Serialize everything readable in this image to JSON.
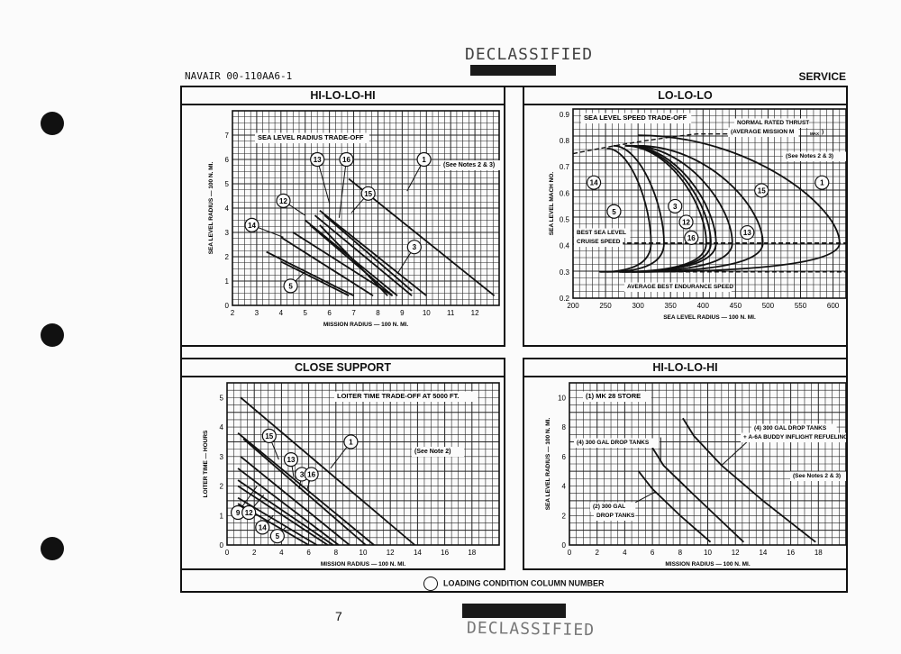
{
  "page": {
    "doc_number": "NAVAIR 00-110AA6-1",
    "section": "SERVICE",
    "stamp_top": "DECLASSIFIED",
    "stamp_bottom": "DECLASSIFIED",
    "legend": "LOADING CONDITION COLUMN NUMBER",
    "stray_mark": "7"
  },
  "chart_data": [
    {
      "panel_title": "HI-LO-LO-HI",
      "type": "line",
      "inner_title": "SEA LEVEL RADIUS TRADE-OFF",
      "note": "(See Notes 2 & 3)",
      "xlabel": "MISSION RADIUS — 100 N. MI.",
      "ylabel": "SEA LEVEL RADIUS — 100 N. MI.",
      "xlim": [
        2,
        13
      ],
      "ylim": [
        0,
        8
      ],
      "xticks": [
        2,
        3,
        4,
        5,
        6,
        7,
        8,
        9,
        10,
        11,
        12
      ],
      "yticks": [
        0,
        1,
        2,
        3,
        4,
        5,
        6,
        7
      ],
      "series": [
        {
          "name": "1",
          "points": [
            [
              6.8,
              5.2
            ],
            [
              12.8,
              0.4
            ]
          ]
        },
        {
          "name": "15",
          "points": [
            [
              5.6,
              3.9
            ],
            [
              10.0,
              0.4
            ]
          ]
        },
        {
          "name": "16",
          "points": [
            [
              5.4,
              3.7
            ],
            [
              9.4,
              0.4
            ]
          ]
        },
        {
          "name": "13",
          "points": [
            [
              5.0,
              3.5
            ],
            [
              8.8,
              0.4
            ]
          ]
        },
        {
          "name": "",
          "points": [
            [
              5.2,
              3.3
            ],
            [
              8.6,
              0.4
            ]
          ]
        },
        {
          "name": "",
          "points": [
            [
              5.6,
              3.3
            ],
            [
              8.4,
              0.4
            ]
          ]
        },
        {
          "name": "12",
          "points": [
            [
              4.5,
              3.0
            ],
            [
              8.6,
              0.4
            ]
          ]
        },
        {
          "name": "14",
          "points": [
            [
              4.0,
              2.8
            ],
            [
              7.8,
              0.4
            ]
          ]
        },
        {
          "name": "5",
          "points": [
            [
              3.4,
              2.2
            ],
            [
              7.0,
              0.4
            ]
          ]
        },
        {
          "name": "",
          "points": [
            [
              4.0,
              1.8
            ],
            [
              6.8,
              0.4
            ]
          ]
        },
        {
          "name": "3",
          "points": [
            [
              5.8,
              3.7
            ],
            [
              9.4,
              0.6
            ]
          ]
        }
      ],
      "callouts": [
        {
          "label": "1",
          "at": [
            9.9,
            6.0
          ],
          "to": [
            9.2,
            4.7
          ]
        },
        {
          "label": "13",
          "at": [
            5.5,
            6.0
          ],
          "to": [
            6.0,
            4.2
          ]
        },
        {
          "label": "16",
          "at": [
            6.7,
            6.0
          ],
          "to": [
            6.4,
            3.6
          ]
        },
        {
          "label": "15",
          "at": [
            7.6,
            4.6
          ],
          "to": [
            6.9,
            3.8
          ]
        },
        {
          "label": "12",
          "at": [
            4.1,
            4.3
          ],
          "to": [
            5.0,
            3.7
          ]
        },
        {
          "label": "14",
          "at": [
            2.8,
            3.3
          ],
          "to": [
            4.1,
            2.8
          ]
        },
        {
          "label": "3",
          "at": [
            9.5,
            2.4
          ],
          "to": [
            8.8,
            1.3
          ]
        },
        {
          "label": "5",
          "at": [
            4.4,
            0.8
          ],
          "to": [
            5.0,
            1.4
          ]
        }
      ]
    },
    {
      "panel_title": "LO-LO-LO",
      "type": "line",
      "inner_title": "SEA LEVEL SPEED TRADE-OFF",
      "note": "(See Notes 2 & 3)",
      "annotations": [
        "NORMAL RATED THRUST",
        "(AVERAGE MISSION M",
        "MAX",
        ")",
        "BEST SEA LEVEL",
        "CRUISE SPEED",
        "AVERAGE BEST ENDURANCE SPEED"
      ],
      "xlabel": "SEA LEVEL RADIUS — 100 N. MI.",
      "ylabel": "SEA LEVEL MACH NO.",
      "xlim": [
        200,
        620
      ],
      "ylim": [
        0.2,
        0.92
      ],
      "xticks": [
        200,
        250,
        300,
        350,
        400,
        450,
        500,
        550,
        600
      ],
      "yticks": [
        0.2,
        0.3,
        0.4,
        0.5,
        0.6,
        0.7,
        0.8,
        0.9
      ],
      "series": [
        {
          "name": "1",
          "nose_x": 610,
          "start_x": 300,
          "top": 0.82
        },
        {
          "name": "15",
          "nose_x": 492,
          "start_x": 300,
          "top": 0.78
        },
        {
          "name": "13",
          "nose_x": 445,
          "start_x": 290,
          "top": 0.78
        },
        {
          "name": "16",
          "nose_x": 420,
          "start_x": 285,
          "top": 0.78
        },
        {
          "name": "12",
          "nose_x": 412,
          "start_x": 282,
          "top": 0.78
        },
        {
          "name": "3",
          "nose_x": 405,
          "start_x": 280,
          "top": 0.78
        },
        {
          "name": "5",
          "nose_x": 340,
          "start_x": 262,
          "top": 0.78
        },
        {
          "name": "14",
          "nose_x": 320,
          "start_x": 252,
          "top": 0.77
        }
      ],
      "callouts": [
        {
          "label": "1",
          "at": [
            583,
            0.64
          ]
        },
        {
          "label": "15",
          "at": [
            490,
            0.61
          ]
        },
        {
          "label": "13",
          "at": [
            468,
            0.45
          ]
        },
        {
          "label": "16",
          "at": [
            382,
            0.43
          ]
        },
        {
          "label": "12",
          "at": [
            374,
            0.49
          ]
        },
        {
          "label": "3",
          "at": [
            357,
            0.55
          ]
        },
        {
          "label": "5",
          "at": [
            263,
            0.53
          ]
        },
        {
          "label": "14",
          "at": [
            232,
            0.64
          ]
        }
      ]
    },
    {
      "panel_title": "CLOSE SUPPORT",
      "type": "line",
      "inner_title": "LOITER TIME TRADE-OFF AT 5000 FT.",
      "note": "(See Note 2)",
      "xlabel": "MISSION RADIUS — 100 N. MI.",
      "ylabel": "LOITER TIME — HOURS",
      "xlim": [
        0,
        20
      ],
      "ylim": [
        0,
        5.5
      ],
      "xticks": [
        0,
        2,
        4,
        6,
        8,
        10,
        12,
        14,
        16,
        18
      ],
      "yticks": [
        0,
        1,
        2,
        3,
        4,
        5
      ],
      "series": [
        {
          "name": "1",
          "points": [
            [
              1,
              5.0
            ],
            [
              13.8,
              0
            ]
          ]
        },
        {
          "name": "15",
          "points": [
            [
              0.8,
              3.8
            ],
            [
              10.8,
              0
            ]
          ]
        },
        {
          "name": "13",
          "points": [
            [
              1.2,
              3.6
            ],
            [
              10.2,
              0
            ]
          ]
        },
        {
          "name": "16",
          "points": [
            [
              1.0,
              3.0
            ],
            [
              9.0,
              0
            ]
          ]
        },
        {
          "name": "3",
          "points": [
            [
              0.8,
              2.6
            ],
            [
              8.2,
              0
            ]
          ]
        },
        {
          "name": "9",
          "points": [
            [
              0.8,
              2.2
            ],
            [
              7.8,
              0
            ]
          ]
        },
        {
          "name": "12",
          "points": [
            [
              0.8,
              2.0
            ],
            [
              7.4,
              0
            ]
          ]
        },
        {
          "name": "14",
          "points": [
            [
              0.8,
              1.6
            ],
            [
              6.6,
              0
            ]
          ]
        },
        {
          "name": "5",
          "points": [
            [
              0.8,
              1.4
            ],
            [
              6.0,
              0
            ]
          ]
        }
      ],
      "callouts": [
        {
          "label": "1",
          "at": [
            9.1,
            3.5
          ],
          "to": [
            7.6,
            2.6
          ]
        },
        {
          "label": "15",
          "at": [
            3.1,
            3.7
          ],
          "to": [
            3.8,
            2.9
          ]
        },
        {
          "label": "13",
          "at": [
            4.7,
            2.9
          ],
          "to": [
            4.9,
            2.3
          ]
        },
        {
          "label": "3",
          "at": [
            5.5,
            2.4
          ],
          "to": [
            5.3,
            1.9
          ]
        },
        {
          "label": "16",
          "at": [
            6.2,
            2.4
          ],
          "to": [
            5.9,
            1.9
          ]
        },
        {
          "label": "9",
          "at": [
            0.8,
            1.1
          ],
          "to": [
            2.2,
            2.0
          ]
        },
        {
          "label": "12",
          "at": [
            1.6,
            1.1
          ],
          "to": [
            2.7,
            1.7
          ]
        },
        {
          "label": "14",
          "at": [
            2.6,
            0.6
          ],
          "to": [
            3.4,
            1.0
          ]
        },
        {
          "label": "5",
          "at": [
            3.7,
            0.3
          ],
          "to": [
            4.3,
            0.6
          ]
        }
      ]
    },
    {
      "panel_title": "HI-LO-LO-HI",
      "type": "line",
      "inner_title": "(1) MK 28 STORE",
      "note": "(See Notes 2 & 3)",
      "annotations": [
        "(4) 300 GAL DROP TANKS",
        "(4) 300 GAL DROP TANKS",
        "+ A-6A BUDDY INFLIGHT REFUELING",
        "(2) 300 GAL",
        "DROP TANKS"
      ],
      "xlabel": "MISSION RADIUS — 100 N. MI.",
      "ylabel": "SEA LEVEL RADIUS — 100 N. MI.",
      "xlim": [
        0,
        20
      ],
      "ylim": [
        0,
        11
      ],
      "xticks": [
        0,
        2,
        4,
        6,
        8,
        10,
        12,
        14,
        16,
        18
      ],
      "yticks": [
        0,
        2,
        4,
        6,
        8,
        10
      ],
      "series": [
        {
          "name": "(4) 300 GAL DROP TANKS + A-6A BUDDY INFLIGHT REFUELING",
          "points": [
            [
              8.2,
              8.6
            ],
            [
              9.0,
              7.4
            ],
            [
              11.0,
              5.4
            ],
            [
              14.0,
              3.0
            ],
            [
              17.8,
              0.2
            ]
          ]
        },
        {
          "name": "(4) 300 GAL DROP TANKS",
          "points": [
            [
              6.0,
              6.6
            ],
            [
              6.8,
              5.4
            ],
            [
              9.0,
              3.4
            ],
            [
              12.6,
              0.2
            ]
          ]
        },
        {
          "name": "(2) 300 GAL DROP TANKS",
          "points": [
            [
              5.0,
              5.0
            ],
            [
              6.0,
              3.8
            ],
            [
              8.0,
              2.0
            ],
            [
              10.2,
              0.2
            ]
          ]
        }
      ]
    }
  ]
}
